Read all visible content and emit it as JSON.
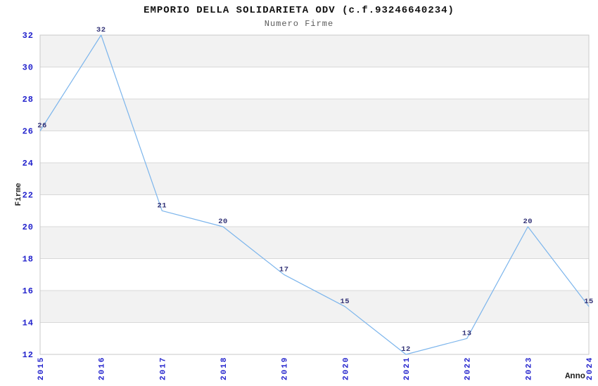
{
  "chart_data": {
    "type": "line",
    "title": "EMPORIO DELLA SOLIDARIETA ODV (c.f.93246640234)",
    "subtitle": "Numero Firme",
    "xlabel": "Anno",
    "ylabel": "Firme",
    "categories": [
      "2015",
      "2016",
      "2017",
      "2018",
      "2019",
      "2020",
      "2021",
      "2022",
      "2023",
      "2024"
    ],
    "values": [
      26,
      32,
      21,
      20,
      17,
      15,
      12,
      13,
      20,
      15
    ],
    "ylim": [
      12,
      32
    ],
    "ytick_step": 2,
    "yticks": [
      12,
      14,
      16,
      18,
      20,
      22,
      24,
      26,
      28,
      30,
      32
    ],
    "grid": true,
    "alternate_grid_bands": true,
    "legend_position": "none",
    "data_labels_visible": true,
    "colors": {
      "line": "#7cb5ec",
      "tick_label": "#2222cc",
      "data_label": "#333377",
      "band": "#f2f2f2",
      "gridline": "#d8d8d8",
      "plot_border": "#c9c9c9",
      "title": "#111111",
      "subtitle": "#5a5a5a",
      "axis_title": "#222222",
      "background": "#ffffff"
    }
  }
}
